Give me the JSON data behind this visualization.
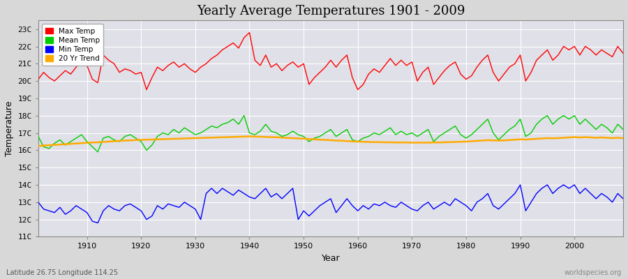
{
  "title": "Yearly Average Temperatures 1901 - 2009",
  "xlabel": "Year",
  "ylabel": "Temperature",
  "years_start": 1901,
  "years_end": 2009,
  "yticks": [
    11,
    12,
    13,
    14,
    15,
    16,
    17,
    18,
    19,
    20,
    21,
    22,
    23
  ],
  "ytick_labels": [
    "11C",
    "12C",
    "13C",
    "14C",
    "15C",
    "16C",
    "17C",
    "18C",
    "19C",
    "20C",
    "21C",
    "22C",
    "23C"
  ],
  "ylim": [
    11,
    23.5
  ],
  "xlim": [
    1901,
    2009
  ],
  "xticks": [
    1910,
    1920,
    1930,
    1940,
    1950,
    1960,
    1970,
    1980,
    1990,
    2000
  ],
  "fig_bg_color": "#d8d8d8",
  "plot_bg_color": "#e0e0e8",
  "grid_color": "#ffffff",
  "max_temp_color": "#ff0000",
  "mean_temp_color": "#00cc00",
  "min_temp_color": "#0000ff",
  "trend_color": "#ffaa00",
  "trend_linewidth": 1.8,
  "data_linewidth": 1.0,
  "legend_labels": [
    "Max Temp",
    "Mean Temp",
    "Min Temp",
    "20 Yr Trend"
  ],
  "bottom_left_text": "Latitude 26.75 Longitude 114.25",
  "bottom_right_text": "worldspecies.org",
  "max_temps": [
    20.1,
    20.5,
    20.2,
    20.0,
    20.3,
    20.6,
    20.4,
    20.8,
    21.2,
    20.9,
    20.1,
    19.9,
    21.5,
    21.2,
    21.0,
    20.5,
    20.7,
    20.6,
    20.4,
    20.5,
    19.5,
    20.2,
    20.8,
    20.6,
    20.9,
    21.1,
    20.8,
    21.0,
    20.7,
    20.5,
    20.8,
    21.0,
    21.3,
    21.5,
    21.8,
    22.0,
    22.2,
    21.9,
    22.5,
    22.8,
    21.2,
    20.9,
    21.5,
    20.8,
    21.0,
    20.6,
    20.9,
    21.1,
    20.8,
    21.0,
    19.8,
    20.2,
    20.5,
    20.8,
    21.2,
    20.8,
    21.2,
    21.5,
    20.2,
    19.5,
    19.8,
    20.4,
    20.7,
    20.5,
    20.9,
    21.3,
    20.9,
    21.2,
    20.9,
    21.1,
    20.0,
    20.5,
    20.8,
    19.8,
    20.2,
    20.6,
    20.9,
    21.1,
    20.4,
    20.1,
    20.3,
    20.8,
    21.2,
    21.5,
    20.5,
    20.0,
    20.4,
    20.8,
    21.0,
    21.5,
    20.0,
    20.5,
    21.2,
    21.5,
    21.8,
    21.2,
    21.5,
    22.0,
    21.8,
    22.0,
    21.5,
    22.0,
    21.8,
    21.5,
    21.8,
    21.6,
    21.4,
    22.0,
    21.6
  ],
  "mean_temps": [
    16.8,
    16.2,
    16.1,
    16.4,
    16.6,
    16.3,
    16.5,
    16.7,
    16.9,
    16.5,
    16.2,
    15.9,
    16.7,
    16.8,
    16.6,
    16.5,
    16.8,
    16.9,
    16.7,
    16.5,
    16.0,
    16.3,
    16.8,
    17.0,
    16.9,
    17.2,
    17.0,
    17.3,
    17.1,
    16.9,
    17.0,
    17.2,
    17.4,
    17.3,
    17.5,
    17.6,
    17.8,
    17.5,
    18.0,
    17.0,
    16.9,
    17.1,
    17.5,
    17.1,
    17.0,
    16.8,
    16.9,
    17.1,
    16.9,
    16.8,
    16.5,
    16.7,
    16.8,
    17.0,
    17.2,
    16.8,
    17.0,
    17.2,
    16.6,
    16.5,
    16.7,
    16.8,
    17.0,
    16.9,
    17.1,
    17.3,
    16.9,
    17.1,
    16.9,
    17.0,
    16.8,
    17.0,
    17.2,
    16.5,
    16.8,
    17.0,
    17.2,
    17.4,
    16.9,
    16.7,
    16.9,
    17.2,
    17.5,
    17.8,
    17.0,
    16.6,
    16.9,
    17.2,
    17.4,
    17.8,
    16.8,
    17.0,
    17.5,
    17.8,
    18.0,
    17.5,
    17.8,
    18.0,
    17.8,
    18.0,
    17.5,
    17.8,
    17.5,
    17.2,
    17.5,
    17.3,
    17.0,
    17.5,
    17.2
  ],
  "min_temps": [
    13.0,
    12.6,
    12.5,
    12.4,
    12.7,
    12.3,
    12.5,
    12.8,
    12.6,
    12.4,
    11.9,
    11.8,
    12.5,
    12.8,
    12.6,
    12.5,
    12.8,
    12.9,
    12.7,
    12.5,
    12.0,
    12.2,
    12.8,
    12.6,
    12.9,
    12.8,
    12.7,
    13.0,
    12.8,
    12.6,
    12.0,
    13.5,
    13.8,
    13.5,
    13.8,
    13.6,
    13.4,
    13.7,
    13.5,
    13.3,
    13.2,
    13.5,
    13.8,
    13.3,
    13.5,
    13.2,
    13.5,
    13.8,
    12.0,
    12.5,
    12.2,
    12.5,
    12.8,
    13.0,
    13.2,
    12.4,
    12.8,
    13.2,
    12.8,
    12.5,
    12.8,
    12.6,
    12.9,
    12.8,
    13.0,
    12.8,
    12.7,
    13.0,
    12.8,
    12.6,
    12.5,
    12.8,
    13.0,
    12.6,
    12.8,
    13.0,
    12.8,
    13.2,
    13.0,
    12.8,
    12.5,
    13.0,
    13.2,
    13.5,
    12.8,
    12.6,
    12.9,
    13.2,
    13.5,
    14.0,
    12.5,
    13.0,
    13.5,
    13.8,
    14.0,
    13.5,
    13.8,
    14.0,
    13.8,
    14.0,
    13.5,
    13.8,
    13.5,
    13.2,
    13.5,
    13.3,
    13.0,
    13.5,
    13.2
  ],
  "trend_temps": [
    16.25,
    16.27,
    16.29,
    16.31,
    16.33,
    16.35,
    16.37,
    16.39,
    16.41,
    16.43,
    16.45,
    16.46,
    16.48,
    16.5,
    16.52,
    16.54,
    16.56,
    16.57,
    16.59,
    16.6,
    16.61,
    16.62,
    16.63,
    16.64,
    16.65,
    16.66,
    16.67,
    16.68,
    16.69,
    16.7,
    16.71,
    16.72,
    16.73,
    16.74,
    16.75,
    16.76,
    16.77,
    16.78,
    16.79,
    16.8,
    16.79,
    16.78,
    16.77,
    16.76,
    16.75,
    16.73,
    16.71,
    16.7,
    16.68,
    16.67,
    16.65,
    16.63,
    16.61,
    16.6,
    16.58,
    16.56,
    16.55,
    16.53,
    16.51,
    16.5,
    16.49,
    16.48,
    16.47,
    16.47,
    16.46,
    16.46,
    16.45,
    16.45,
    16.45,
    16.44,
    16.44,
    16.44,
    16.44,
    16.45,
    16.45,
    16.46,
    16.47,
    16.48,
    16.49,
    16.5,
    16.52,
    16.54,
    16.56,
    16.58,
    16.57,
    16.56,
    16.57,
    16.59,
    16.61,
    16.63,
    16.62,
    16.64,
    16.66,
    16.68,
    16.7,
    16.69,
    16.7,
    16.72,
    16.74,
    16.76,
    16.74,
    16.76,
    16.74,
    16.72,
    16.74,
    16.72,
    16.7,
    16.72,
    16.7
  ]
}
